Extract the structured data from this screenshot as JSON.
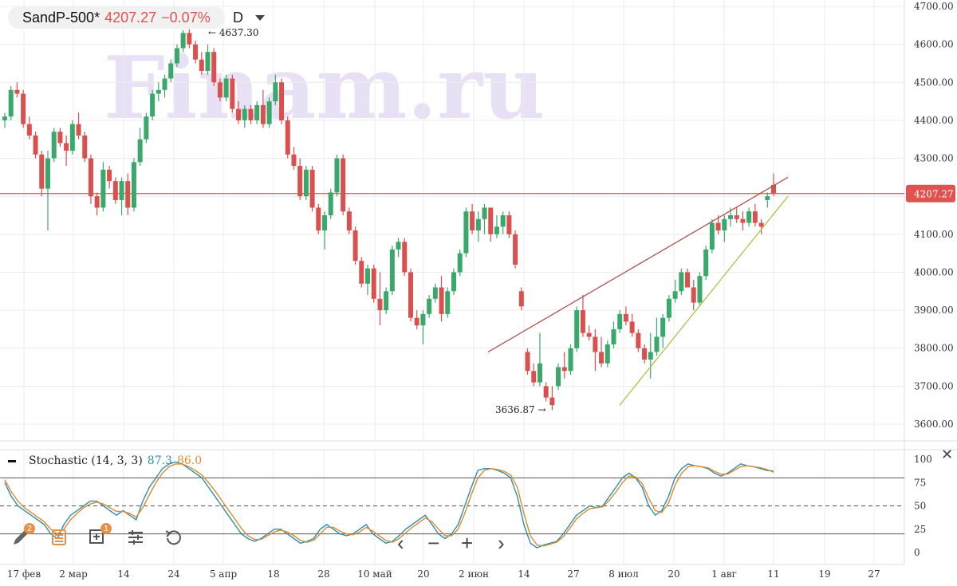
{
  "header": {
    "symbol": "SandP-500*",
    "price": "4207.27",
    "change": "−0.07%",
    "timeframe": "D"
  },
  "watermark": "Finam.ru",
  "price_axis": {
    "labels": [
      "4700.00",
      "4600.00",
      "4500.00",
      "4400.00",
      "4300.00",
      "4200.00",
      "4100.00",
      "4000.00",
      "3900.00",
      "3800.00",
      "3700.00",
      "3600.00"
    ],
    "current_label": "4207.27"
  },
  "annotations": {
    "high": "4637.30",
    "low": "3636.87"
  },
  "time_axis": {
    "labels": [
      "17 фев",
      "2 мар",
      "14",
      "24",
      "5 апр",
      "18",
      "28",
      "10 май",
      "20",
      "2 июн",
      "14",
      "27",
      "8 июл",
      "20",
      "1 авг",
      "11",
      "19",
      "27"
    ]
  },
  "stochastic": {
    "name": "Stochastic (14, 3, 3)",
    "k_value": "87.3",
    "d_value": "86.0",
    "levels": [
      "100",
      "75",
      "50",
      "25",
      "0"
    ]
  },
  "colors": {
    "up": "#3aa86b",
    "down": "#d9504f",
    "price_line": "#e0524f",
    "upper_trend": "#b0524f",
    "lower_trend": "#a9c24a",
    "k": "#2c8fb0",
    "d": "#e08a2c"
  },
  "chart_data": {
    "type": "candlestick",
    "series": [
      {
        "name": "SandP-500*",
        "ohlc": [
          [
            4400,
            4420,
            4380,
            4410
          ],
          [
            4410,
            4490,
            4400,
            4480
          ],
          [
            4480,
            4500,
            4460,
            4470
          ],
          [
            4470,
            4480,
            4380,
            4390
          ],
          [
            4390,
            4410,
            4350,
            4360
          ],
          [
            4360,
            4370,
            4300,
            4310
          ],
          [
            4310,
            4320,
            4200,
            4220
          ],
          [
            4220,
            4320,
            4110,
            4300
          ],
          [
            4300,
            4380,
            4290,
            4370
          ],
          [
            4370,
            4380,
            4330,
            4340
          ],
          [
            4340,
            4360,
            4280,
            4320
          ],
          [
            4320,
            4400,
            4310,
            4390
          ],
          [
            4390,
            4420,
            4350,
            4360
          ],
          [
            4360,
            4370,
            4290,
            4300
          ],
          [
            4300,
            4310,
            4180,
            4200
          ],
          [
            4200,
            4210,
            4150,
            4170
          ],
          [
            4170,
            4290,
            4160,
            4270
          ],
          [
            4270,
            4280,
            4220,
            4240
          ],
          [
            4240,
            4250,
            4180,
            4190
          ],
          [
            4190,
            4250,
            4150,
            4240
          ],
          [
            4240,
            4260,
            4150,
            4170
          ],
          [
            4170,
            4300,
            4160,
            4290
          ],
          [
            4290,
            4380,
            4280,
            4350
          ],
          [
            4350,
            4420,
            4340,
            4410
          ],
          [
            4410,
            4480,
            4400,
            4470
          ],
          [
            4470,
            4500,
            4450,
            4480
          ],
          [
            4480,
            4520,
            4460,
            4510
          ],
          [
            4510,
            4560,
            4500,
            4550
          ],
          [
            4550,
            4600,
            4540,
            4590
          ],
          [
            4590,
            4637.3,
            4580,
            4630
          ],
          [
            4630,
            4640,
            4590,
            4600
          ],
          [
            4600,
            4610,
            4550,
            4560
          ],
          [
            4560,
            4580,
            4520,
            4530
          ],
          [
            4530,
            4600,
            4520,
            4580
          ],
          [
            4580,
            4590,
            4490,
            4500
          ],
          [
            4500,
            4510,
            4450,
            4460
          ],
          [
            4460,
            4520,
            4450,
            4510
          ],
          [
            4510,
            4520,
            4420,
            4430
          ],
          [
            4430,
            4450,
            4390,
            4400
          ],
          [
            4400,
            4440,
            4380,
            4430
          ],
          [
            4430,
            4440,
            4390,
            4400
          ],
          [
            4400,
            4450,
            4390,
            4440
          ],
          [
            4440,
            4480,
            4380,
            4390
          ],
          [
            4390,
            4460,
            4380,
            4450
          ],
          [
            4450,
            4520,
            4440,
            4500
          ],
          [
            4500,
            4510,
            4390,
            4400
          ],
          [
            4400,
            4410,
            4300,
            4310
          ],
          [
            4310,
            4330,
            4270,
            4280
          ],
          [
            4280,
            4300,
            4190,
            4200
          ],
          [
            4200,
            4280,
            4190,
            4270
          ],
          [
            4270,
            4280,
            4160,
            4170
          ],
          [
            4170,
            4180,
            4100,
            4110
          ],
          [
            4110,
            4160,
            4060,
            4150
          ],
          [
            4150,
            4220,
            4140,
            4210
          ],
          [
            4210,
            4310,
            4200,
            4300
          ],
          [
            4300,
            4310,
            4150,
            4160
          ],
          [
            4160,
            4170,
            4100,
            4110
          ],
          [
            4110,
            4120,
            4020,
            4030
          ],
          [
            4030,
            4040,
            3960,
            3970
          ],
          [
            3970,
            4020,
            3940,
            4010
          ],
          [
            4010,
            4020,
            3920,
            3930
          ],
          [
            3930,
            4000,
            3860,
            3900
          ],
          [
            3900,
            3960,
            3890,
            3950
          ],
          [
            3950,
            4070,
            3940,
            4060
          ],
          [
            4060,
            4090,
            4040,
            4080
          ],
          [
            4080,
            4090,
            3990,
            4000
          ],
          [
            4000,
            4010,
            3870,
            3880
          ],
          [
            3880,
            3900,
            3850,
            3860
          ],
          [
            3860,
            3900,
            3810,
            3890
          ],
          [
            3890,
            3940,
            3880,
            3930
          ],
          [
            3930,
            3970,
            3920,
            3960
          ],
          [
            3960,
            3990,
            3870,
            3890
          ],
          [
            3890,
            3960,
            3880,
            3950
          ],
          [
            3950,
            4010,
            3940,
            4000
          ],
          [
            4000,
            4060,
            3990,
            4050
          ],
          [
            4050,
            4170,
            4040,
            4160
          ],
          [
            4160,
            4180,
            4100,
            4110
          ],
          [
            4110,
            4160,
            4080,
            4140
          ],
          [
            4140,
            4180,
            4100,
            4170
          ],
          [
            4170,
            4170,
            4080,
            4100
          ],
          [
            4100,
            4150,
            4090,
            4120
          ],
          [
            4120,
            4160,
            4100,
            4150
          ],
          [
            4150,
            4160,
            4090,
            4100
          ],
          [
            4100,
            4110,
            4010,
            4020
          ],
          [
            3950,
            3960,
            3900,
            3910
          ],
          [
            3790,
            3800,
            3730,
            3740
          ],
          [
            3740,
            3760,
            3700,
            3710
          ],
          [
            3710,
            3840,
            3700,
            3760
          ],
          [
            3700,
            3710,
            3660,
            3670
          ],
          [
            3670,
            3700,
            3636.87,
            3650
          ],
          [
            3700,
            3760,
            3690,
            3750
          ],
          [
            3750,
            3790,
            3720,
            3740
          ],
          [
            3740,
            3810,
            3730,
            3800
          ],
          [
            3800,
            3910,
            3790,
            3900
          ],
          [
            3900,
            3940,
            3830,
            3840
          ],
          [
            3840,
            3860,
            3820,
            3830
          ],
          [
            3830,
            3850,
            3740,
            3790
          ],
          [
            3790,
            3830,
            3750,
            3760
          ],
          [
            3760,
            3820,
            3750,
            3810
          ],
          [
            3810,
            3870,
            3800,
            3850
          ],
          [
            3850,
            3900,
            3840,
            3890
          ],
          [
            3890,
            3910,
            3860,
            3870
          ],
          [
            3870,
            3890,
            3830,
            3840
          ],
          [
            3840,
            3850,
            3790,
            3800
          ],
          [
            3800,
            3810,
            3760,
            3770
          ],
          [
            3770,
            3840,
            3720,
            3790
          ],
          [
            3790,
            3880,
            3780,
            3830
          ],
          [
            3830,
            3890,
            3800,
            3880
          ],
          [
            3880,
            3940,
            3870,
            3930
          ],
          [
            3930,
            3980,
            3920,
            3950
          ],
          [
            3950,
            4010,
            3940,
            4000
          ],
          [
            4000,
            4010,
            3960,
            3960
          ],
          [
            3960,
            3980,
            3900,
            3920
          ],
          [
            3920,
            4000,
            3910,
            3990
          ],
          [
            3990,
            4070,
            3980,
            4060
          ],
          [
            4060,
            4140,
            4050,
            4130
          ],
          [
            4130,
            4150,
            4100,
            4110
          ],
          [
            4110,
            4150,
            4080,
            4140
          ],
          [
            4140,
            4170,
            4120,
            4150
          ],
          [
            4150,
            4170,
            4130,
            4140
          ],
          [
            4140,
            4160,
            4110,
            4130
          ],
          [
            4130,
            4170,
            4120,
            4160
          ],
          [
            4160,
            4180,
            4120,
            4130
          ],
          [
            4130,
            4140,
            4100,
            4120
          ],
          [
            4190,
            4210,
            4170,
            4200
          ],
          [
            4230,
            4260,
            4200,
            4207.27
          ]
        ]
      }
    ],
    "y_range": [
      3560,
      4720
    ],
    "horizontal_line": 4207.27,
    "stochastic": {
      "k": [
        75,
        60,
        50,
        45,
        40,
        35,
        30,
        20,
        15,
        30,
        40,
        45,
        50,
        55,
        55,
        50,
        45,
        40,
        45,
        40,
        35,
        55,
        70,
        80,
        90,
        95,
        97,
        95,
        90,
        85,
        80,
        70,
        60,
        50,
        40,
        30,
        20,
        15,
        12,
        15,
        20,
        25,
        25,
        20,
        15,
        10,
        12,
        15,
        25,
        30,
        25,
        20,
        18,
        20,
        25,
        30,
        20,
        15,
        10,
        12,
        18,
        25,
        30,
        35,
        40,
        30,
        20,
        15,
        20,
        30,
        50,
        70,
        88,
        90,
        90,
        88,
        85,
        80,
        60,
        30,
        10,
        5,
        8,
        10,
        12,
        20,
        30,
        40,
        45,
        50,
        48,
        50,
        60,
        70,
        80,
        85,
        80,
        70,
        50,
        40,
        45,
        60,
        80,
        90,
        95,
        93,
        92,
        90,
        85,
        82,
        85,
        90,
        95,
        93,
        92,
        90,
        88,
        87.3
      ],
      "d": [
        78,
        65,
        55,
        48,
        43,
        38,
        33,
        25,
        20,
        25,
        35,
        42,
        48,
        52,
        54,
        52,
        48,
        44,
        44,
        42,
        38,
        48,
        62,
        75,
        85,
        92,
        95,
        95,
        92,
        88,
        83,
        75,
        66,
        56,
        46,
        36,
        26,
        18,
        14,
        14,
        18,
        22,
        24,
        22,
        18,
        13,
        11,
        13,
        20,
        27,
        27,
        23,
        20,
        19,
        22,
        27,
        23,
        18,
        13,
        11,
        15,
        21,
        27,
        32,
        37,
        33,
        25,
        18,
        18,
        25,
        42,
        62,
        80,
        88,
        90,
        89,
        87,
        83,
        70,
        42,
        18,
        8,
        7,
        9,
        11,
        17,
        26,
        36,
        42,
        47,
        48,
        49,
        56,
        65,
        75,
        82,
        81,
        74,
        58,
        45,
        43,
        53,
        72,
        85,
        92,
        93,
        92,
        91,
        87,
        84,
        84,
        88,
        92,
        93,
        92,
        91,
        89,
        86.0
      ],
      "levels": [
        80,
        50,
        20
      ]
    }
  }
}
